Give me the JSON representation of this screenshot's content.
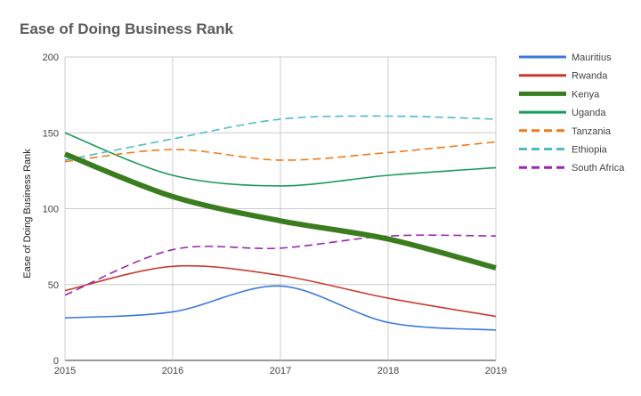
{
  "chart_data": {
    "type": "line",
    "title": "Ease of Doing Business Rank",
    "xlabel": "",
    "ylabel": "Ease of Doing Business Rank",
    "x": [
      2015,
      2016,
      2017,
      2018,
      2019
    ],
    "ylim": [
      0,
      200
    ],
    "yticks": [
      0,
      50,
      100,
      150,
      200
    ],
    "grid": true,
    "legend_position": "right",
    "series": [
      {
        "name": "Mauritius",
        "values": [
          28,
          32,
          49,
          25,
          20
        ],
        "color": "#3b78d8",
        "style": "solid",
        "weight": "normal"
      },
      {
        "name": "Rwanda",
        "values": [
          46,
          62,
          56,
          41,
          29
        ],
        "color": "#c93b2e",
        "style": "solid",
        "weight": "normal"
      },
      {
        "name": "Kenya",
        "values": [
          136,
          108,
          92,
          80,
          61
        ],
        "color": "#3a7d1e",
        "style": "solid",
        "weight": "bold"
      },
      {
        "name": "Uganda",
        "values": [
          150,
          122,
          115,
          122,
          127
        ],
        "color": "#1a9b5a",
        "style": "solid",
        "weight": "normal"
      },
      {
        "name": "Tanzania",
        "values": [
          131,
          139,
          132,
          137,
          144
        ],
        "color": "#f07b1a",
        "style": "dashed",
        "weight": "normal"
      },
      {
        "name": "Ethiopia",
        "values": [
          132,
          146,
          159,
          161,
          159
        ],
        "color": "#4cbcc8",
        "style": "dashed",
        "weight": "normal"
      },
      {
        "name": "South Africa",
        "values": [
          43,
          73,
          74,
          82,
          82
        ],
        "color": "#9b27b0",
        "style": "dashed",
        "weight": "normal"
      }
    ]
  }
}
